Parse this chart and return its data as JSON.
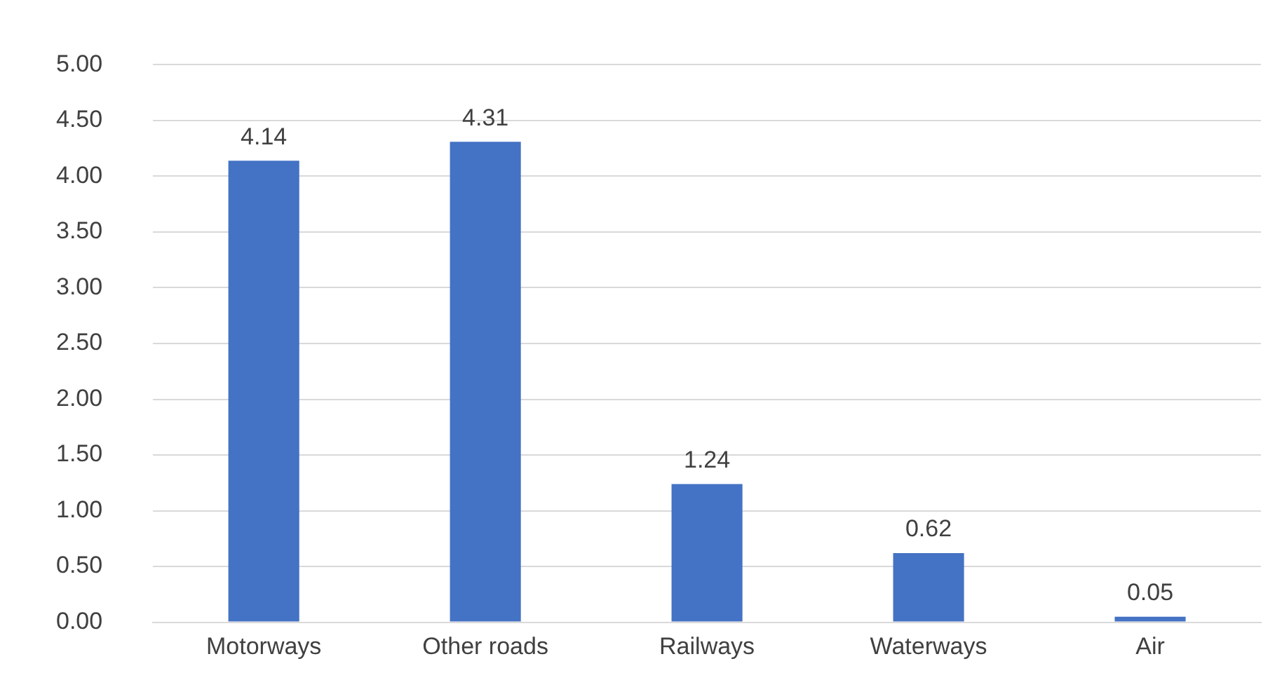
{
  "chart_data": {
    "type": "bar",
    "categories": [
      "Motorways",
      "Other roads",
      "Railways",
      "Waterways",
      "Air"
    ],
    "values": [
      4.14,
      4.31,
      1.24,
      0.62,
      0.05
    ],
    "color": "#4472c4",
    "ylim": [
      0,
      5
    ],
    "yticks": [
      {
        "value": 0,
        "label": "0.00"
      },
      {
        "value": 0.5,
        "label": "0.50"
      },
      {
        "value": 1,
        "label": "1.00"
      },
      {
        "value": 1.5,
        "label": "1.50"
      },
      {
        "value": 2,
        "label": "2.00"
      },
      {
        "value": 2.5,
        "label": "2.50"
      },
      {
        "value": 3,
        "label": "3.00"
      },
      {
        "value": 3.5,
        "label": "3.50"
      },
      {
        "value": 4,
        "label": "4.00"
      },
      {
        "value": 4.5,
        "label": "4.50"
      },
      {
        "value": 5,
        "label": "5.00"
      }
    ],
    "grid": "y",
    "data_labels": true
  }
}
